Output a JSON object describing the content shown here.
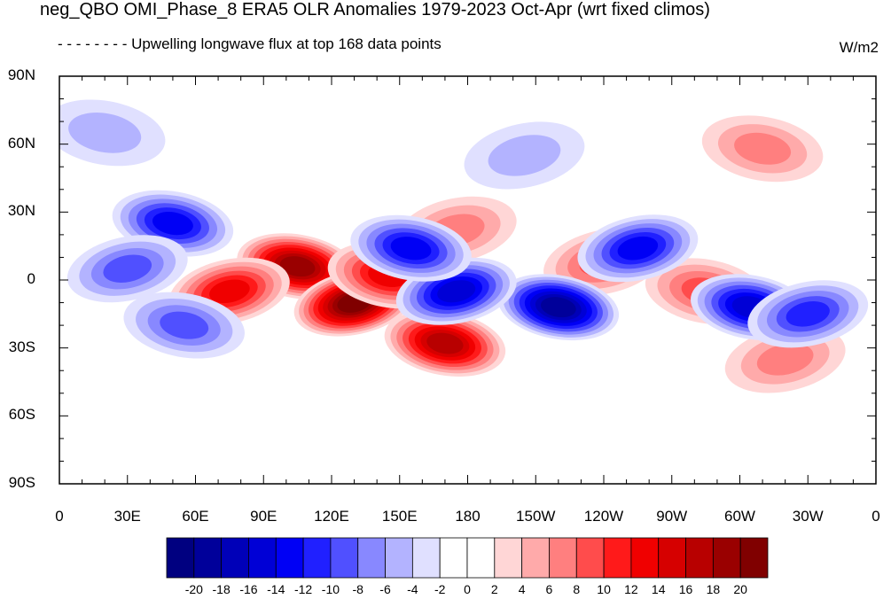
{
  "title": "neg_QBO OMI_Phase_8 ERA5 OLR Anomalies 1979-2023 Oct-Apr (wrt fixed climos)",
  "subtitle": "- - - - - - - -  Upwelling longwave flux at top   168 data points",
  "units": "W/m2",
  "lat_labels": [
    "90N",
    "60N",
    "30N",
    "0",
    "30S",
    "60S",
    "90S"
  ],
  "lon_labels": [
    "0",
    "30E",
    "60E",
    "90E",
    "120E",
    "150E",
    "180",
    "150W",
    "120W",
    "90W",
    "60W",
    "30W",
    "0"
  ],
  "colorbar": {
    "labels": [
      "-20",
      "-18",
      "-16",
      "-14",
      "-12",
      "-10",
      "-8",
      "-6",
      "-4",
      "-2",
      "0",
      "2",
      "4",
      "6",
      "8",
      "10",
      "12",
      "14",
      "16",
      "18",
      "20"
    ],
    "colors": [
      "#000080",
      "#00009a",
      "#0000b8",
      "#0000d6",
      "#0000f5",
      "#2020ff",
      "#5050ff",
      "#8888ff",
      "#b3b3ff",
      "#e0e0ff",
      "#ffffff",
      "#ffffff",
      "#ffd6d6",
      "#ffaaaa",
      "#ff7f7f",
      "#ff4c4c",
      "#ff1a1a",
      "#f00000",
      "#d60000",
      "#b80000",
      "#9a0000",
      "#800000"
    ]
  },
  "map_features": {
    "anomalies": [
      {
        "lon": 105,
        "lat": 6,
        "value": 18
      },
      {
        "lon": 130,
        "lat": -10,
        "value": 20
      },
      {
        "lon": 170,
        "lat": -28,
        "value": 16
      },
      {
        "lon": 75,
        "lat": -5,
        "value": 12
      },
      {
        "lon": 145,
        "lat": 2,
        "value": 12
      },
      {
        "lon": 240,
        "lat": 8,
        "value": 8
      },
      {
        "lon": 285,
        "lat": -5,
        "value": 8
      },
      {
        "lon": 320,
        "lat": -35,
        "value": 6
      },
      {
        "lon": 310,
        "lat": 58,
        "value": 6
      },
      {
        "lon": 175,
        "lat": 22,
        "value": 5
      },
      {
        "lon": 220,
        "lat": -12,
        "value": -18
      },
      {
        "lon": 175,
        "lat": -5,
        "value": -14
      },
      {
        "lon": 155,
        "lat": 14,
        "value": -12
      },
      {
        "lon": 255,
        "lat": 14,
        "value": -12
      },
      {
        "lon": 305,
        "lat": -12,
        "value": -14
      },
      {
        "lon": 330,
        "lat": -15,
        "value": -10
      },
      {
        "lon": 50,
        "lat": 25,
        "value": -12
      },
      {
        "lon": 30,
        "lat": 5,
        "value": -8
      },
      {
        "lon": 55,
        "lat": -20,
        "value": -8
      },
      {
        "lon": 205,
        "lat": 55,
        "value": -4
      },
      {
        "lon": 20,
        "lat": 65,
        "value": -4
      }
    ]
  }
}
